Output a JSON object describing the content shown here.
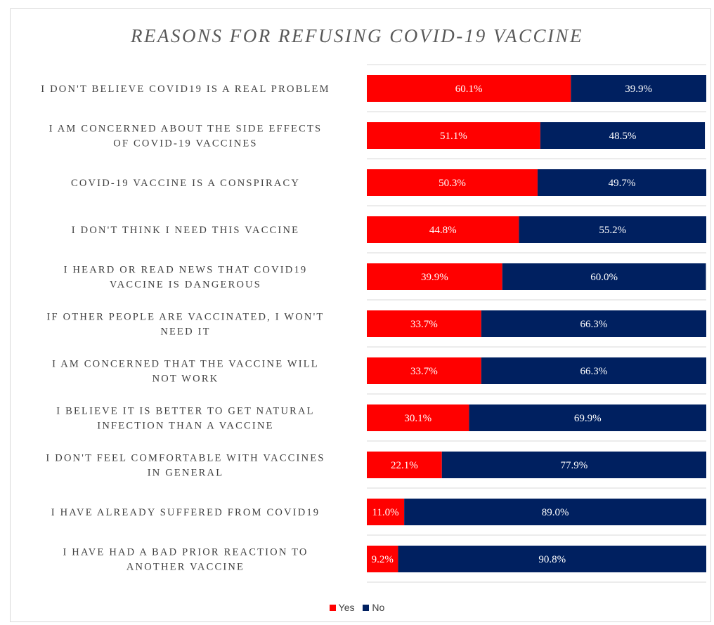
{
  "chart_data": {
    "type": "bar",
    "orientation": "horizontal",
    "stacked": true,
    "title": "REASONS FOR REFUSING COVID-19 VACCINE",
    "categories": [
      [
        "I DON'T BELIEVE COVID19 IS A REAL PROBLEM"
      ],
      [
        "I AM CONCERNED ABOUT THE SIDE EFFECTS",
        "OF COVID-19 VACCINES"
      ],
      [
        "COVID-19 VACCINE IS A CONSPIRACY"
      ],
      [
        "I DON'T THINK I NEED THIS VACCINE"
      ],
      [
        "I HEARD OR READ NEWS THAT COVID19",
        "VACCINE IS DANGEROUS"
      ],
      [
        "IF OTHER PEOPLE ARE VACCINATED, I WON'T",
        "NEED IT"
      ],
      [
        "I AM CONCERNED THAT THE VACCINE WILL",
        "NOT WORK"
      ],
      [
        "I BELIEVE IT IS BETTER TO GET NATURAL",
        "INFECTION THAN A VACCINE"
      ],
      [
        "I DON'T FEEL COMFORTABLE WITH VACCINES",
        "IN GENERAL"
      ],
      [
        "I HAVE ALREADY SUFFERED FROM COVID19"
      ],
      [
        "I HAVE HAD A BAD PRIOR REACTION TO",
        "ANOTHER VACCINE"
      ]
    ],
    "series": [
      {
        "name": "Yes",
        "color": "#ff0000",
        "values": [
          60.1,
          51.1,
          50.3,
          44.8,
          39.9,
          33.7,
          33.7,
          30.1,
          22.1,
          11.0,
          9.2
        ],
        "labels": [
          "60.1%",
          "51.1%",
          "50.3%",
          "44.8%",
          "39.9%",
          "33.7%",
          "33.7%",
          "30.1%",
          "22.1%",
          "11.0%",
          "9.2%"
        ]
      },
      {
        "name": "No",
        "color": "#002060",
        "values": [
          39.9,
          48.5,
          49.7,
          55.2,
          60.0,
          66.3,
          66.3,
          69.9,
          77.9,
          89.0,
          90.8
        ],
        "labels": [
          "39.9%",
          "48.5%",
          "49.7%",
          "55.2%",
          "60.0%",
          "66.3%",
          "66.3%",
          "69.9%",
          "77.9%",
          "89.0%",
          "90.8%"
        ]
      }
    ],
    "xlim": [
      0,
      100
    ],
    "legend_position": "bottom",
    "gridlines": true
  }
}
